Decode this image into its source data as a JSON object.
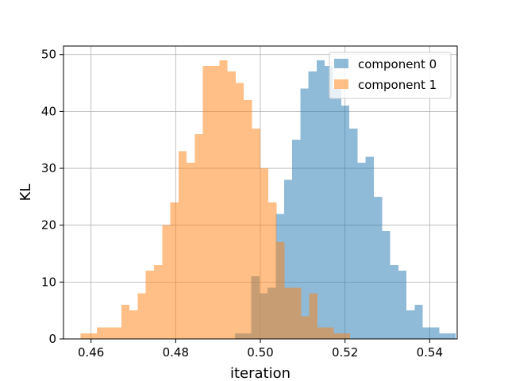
{
  "chart_data": {
    "type": "bar",
    "title": "",
    "xlabel": "iteration",
    "ylabel": "KL",
    "xlim": [
      0.4535,
      0.5465
    ],
    "ylim": [
      0,
      51.5
    ],
    "xticks": [
      "0.46",
      "0.48",
      "0.50",
      "0.52",
      "0.54"
    ],
    "xtick_values": [
      0.46,
      0.48,
      0.5,
      0.52,
      0.54
    ],
    "yticks": [
      "0",
      "10",
      "20",
      "30",
      "40",
      "50"
    ],
    "ytick_values": [
      0,
      10,
      20,
      30,
      40,
      50
    ],
    "grid": true,
    "legend_position": "top-right",
    "series": [
      {
        "name": "component 0",
        "color": "#1f77b4",
        "alpha": 0.5,
        "bin_start": 0.494,
        "bin_width": 0.00193,
        "values": [
          1,
          1,
          11,
          8,
          9,
          22,
          28,
          35,
          44,
          47,
          49,
          48,
          44,
          41,
          37,
          31,
          32,
          25,
          19,
          13,
          12,
          5,
          6,
          2,
          2,
          1,
          1
        ]
      },
      {
        "name": "component 1",
        "color": "#ff7f0e",
        "alpha": 0.5,
        "bin_start": 0.4575,
        "bin_width": 0.00193,
        "values": [
          1,
          1,
          2,
          2,
          2,
          6,
          5,
          8,
          12,
          13,
          20,
          24,
          33,
          31,
          36,
          48,
          48,
          49,
          47,
          45,
          42,
          37,
          30,
          24,
          17,
          9,
          9,
          4,
          8,
          2,
          2,
          1,
          1
        ]
      }
    ]
  }
}
